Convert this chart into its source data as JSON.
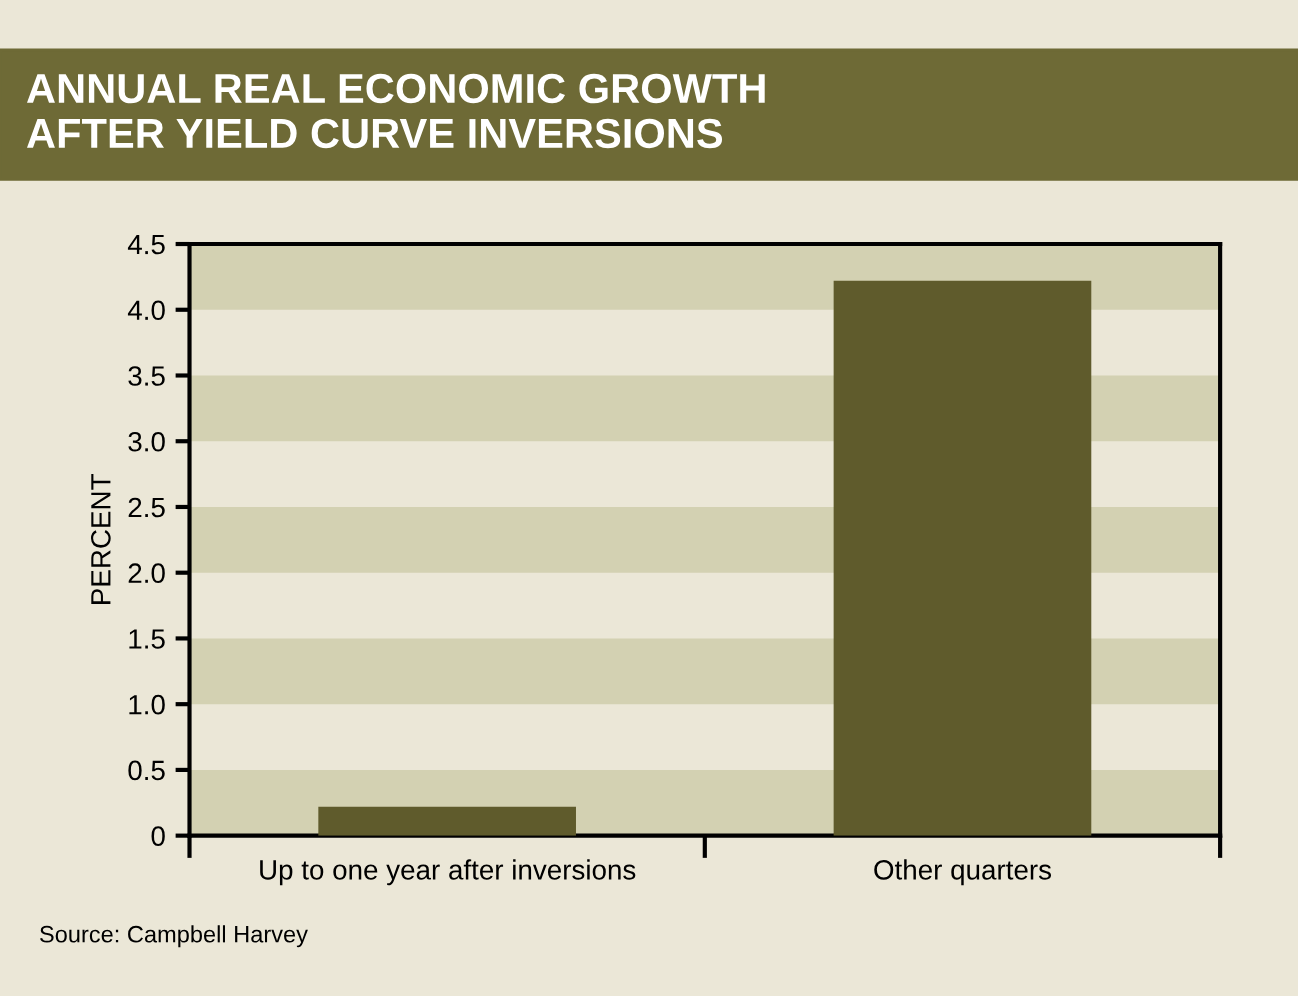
{
  "chart_data": {
    "type": "bar",
    "title": "ANNUAL REAL ECONOMIC GROWTH\nAFTER YIELD CURVE INVERSIONS",
    "ylabel": "PERCENT",
    "categories": [
      "Up to one year after inversions",
      "Other quarters"
    ],
    "series": [
      {
        "color": "#5f5b2c",
        "values": [
          0.22,
          4.22
        ]
      }
    ],
    "ylim": [
      0,
      4.5
    ],
    "yticks": [
      0,
      0.5,
      {
        "value": 1,
        "label": "1.0"
      },
      1.5,
      {
        "value": 2,
        "label": "2.0"
      },
      2.5,
      {
        "value": 3,
        "label": "3.0"
      },
      3.5,
      {
        "value": 4,
        "label": "4.0"
      },
      4.5
    ],
    "bands": [
      {
        "axis": "y",
        "from": 0,
        "to": 0.5,
        "color": "#d3d1b2"
      },
      {
        "axis": "y",
        "from": 1,
        "to": 1.5,
        "color": "#d3d1b2"
      },
      {
        "axis": "y",
        "from": 2,
        "to": 2.5,
        "color": "#d3d1b2"
      },
      {
        "axis": "y",
        "from": 3,
        "to": 3.5,
        "color": "#d3d1b2"
      },
      {
        "axis": "y",
        "from": 4,
        "to": 4.5,
        "color": "#d3d1b2"
      }
    ],
    "annotations": [
      "Source: Campbell Harvey"
    ]
  }
}
